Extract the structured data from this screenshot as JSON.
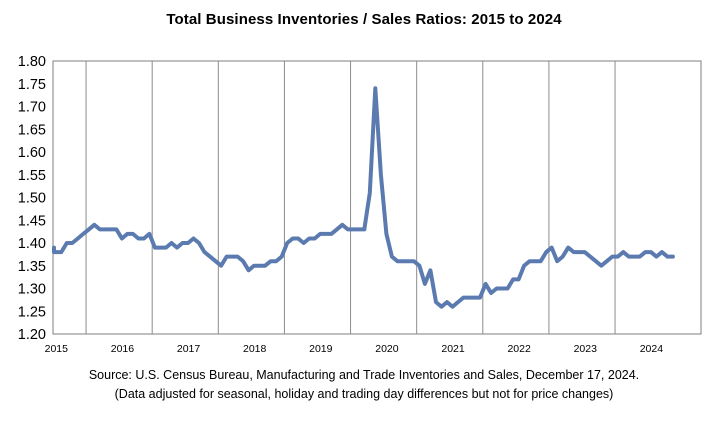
{
  "chart_data": {
    "type": "line",
    "title": "Total Business Inventories / Sales Ratios: 2015 to 2024",
    "xlabel": "",
    "ylabel": "",
    "ylim": [
      1.2,
      1.8
    ],
    "y_ticks": [
      "1.80",
      "1.75",
      "1.70",
      "1.65",
      "1.60",
      "1.55",
      "1.50",
      "1.45",
      "1.40",
      "1.35",
      "1.30",
      "1.25",
      "1.20"
    ],
    "x_categories": [
      "2015",
      "2016",
      "2017",
      "2018",
      "2019",
      "2020",
      "2021",
      "2022",
      "2023",
      "2024"
    ],
    "grid": "vertical lines at year boundaries",
    "legend": "none",
    "series": [
      {
        "color": "#5b7bb0",
        "x_start": "2015-01",
        "frequency": "monthly",
        "values": [
          1.38,
          1.39,
          1.38,
          1.38,
          1.38,
          1.38,
          1.38,
          1.38,
          1.4,
          1.4,
          1.41,
          1.42,
          1.43,
          1.44,
          1.43,
          1.43,
          1.43,
          1.43,
          1.41,
          1.42,
          1.42,
          1.41,
          1.41,
          1.42,
          1.39,
          1.39,
          1.39,
          1.4,
          1.39,
          1.4,
          1.4,
          1.41,
          1.4,
          1.38,
          1.37,
          1.36,
          1.35,
          1.37,
          1.37,
          1.37,
          1.36,
          1.34,
          1.35,
          1.35,
          1.35,
          1.36,
          1.36,
          1.37,
          1.4,
          1.41,
          1.41,
          1.4,
          1.41,
          1.41,
          1.42,
          1.42,
          1.42,
          1.43,
          1.44,
          1.43,
          1.43,
          1.43,
          1.43,
          1.51,
          1.74,
          1.55,
          1.42,
          1.37,
          1.36,
          1.36,
          1.36,
          1.36,
          1.35,
          1.31,
          1.34,
          1.27,
          1.26,
          1.27,
          1.26,
          1.27,
          1.28,
          1.28,
          1.28,
          1.28,
          1.31,
          1.29,
          1.3,
          1.3,
          1.3,
          1.32,
          1.32,
          1.35,
          1.36,
          1.36,
          1.36,
          1.38,
          1.39,
          1.36,
          1.37,
          1.39,
          1.38,
          1.38,
          1.38,
          1.37,
          1.36,
          1.35,
          1.36,
          1.37,
          1.37,
          1.38,
          1.37,
          1.37,
          1.37,
          1.38,
          1.38,
          1.37,
          1.38,
          1.37,
          1.37
        ]
      }
    ]
  },
  "source": {
    "line1": "Source: U.S. Census Bureau, Manufacturing and Trade Inventories and Sales, December 17, 2024.",
    "line2": "(Data adjusted for seasonal, holiday and trading day differences but not for price changes)"
  }
}
